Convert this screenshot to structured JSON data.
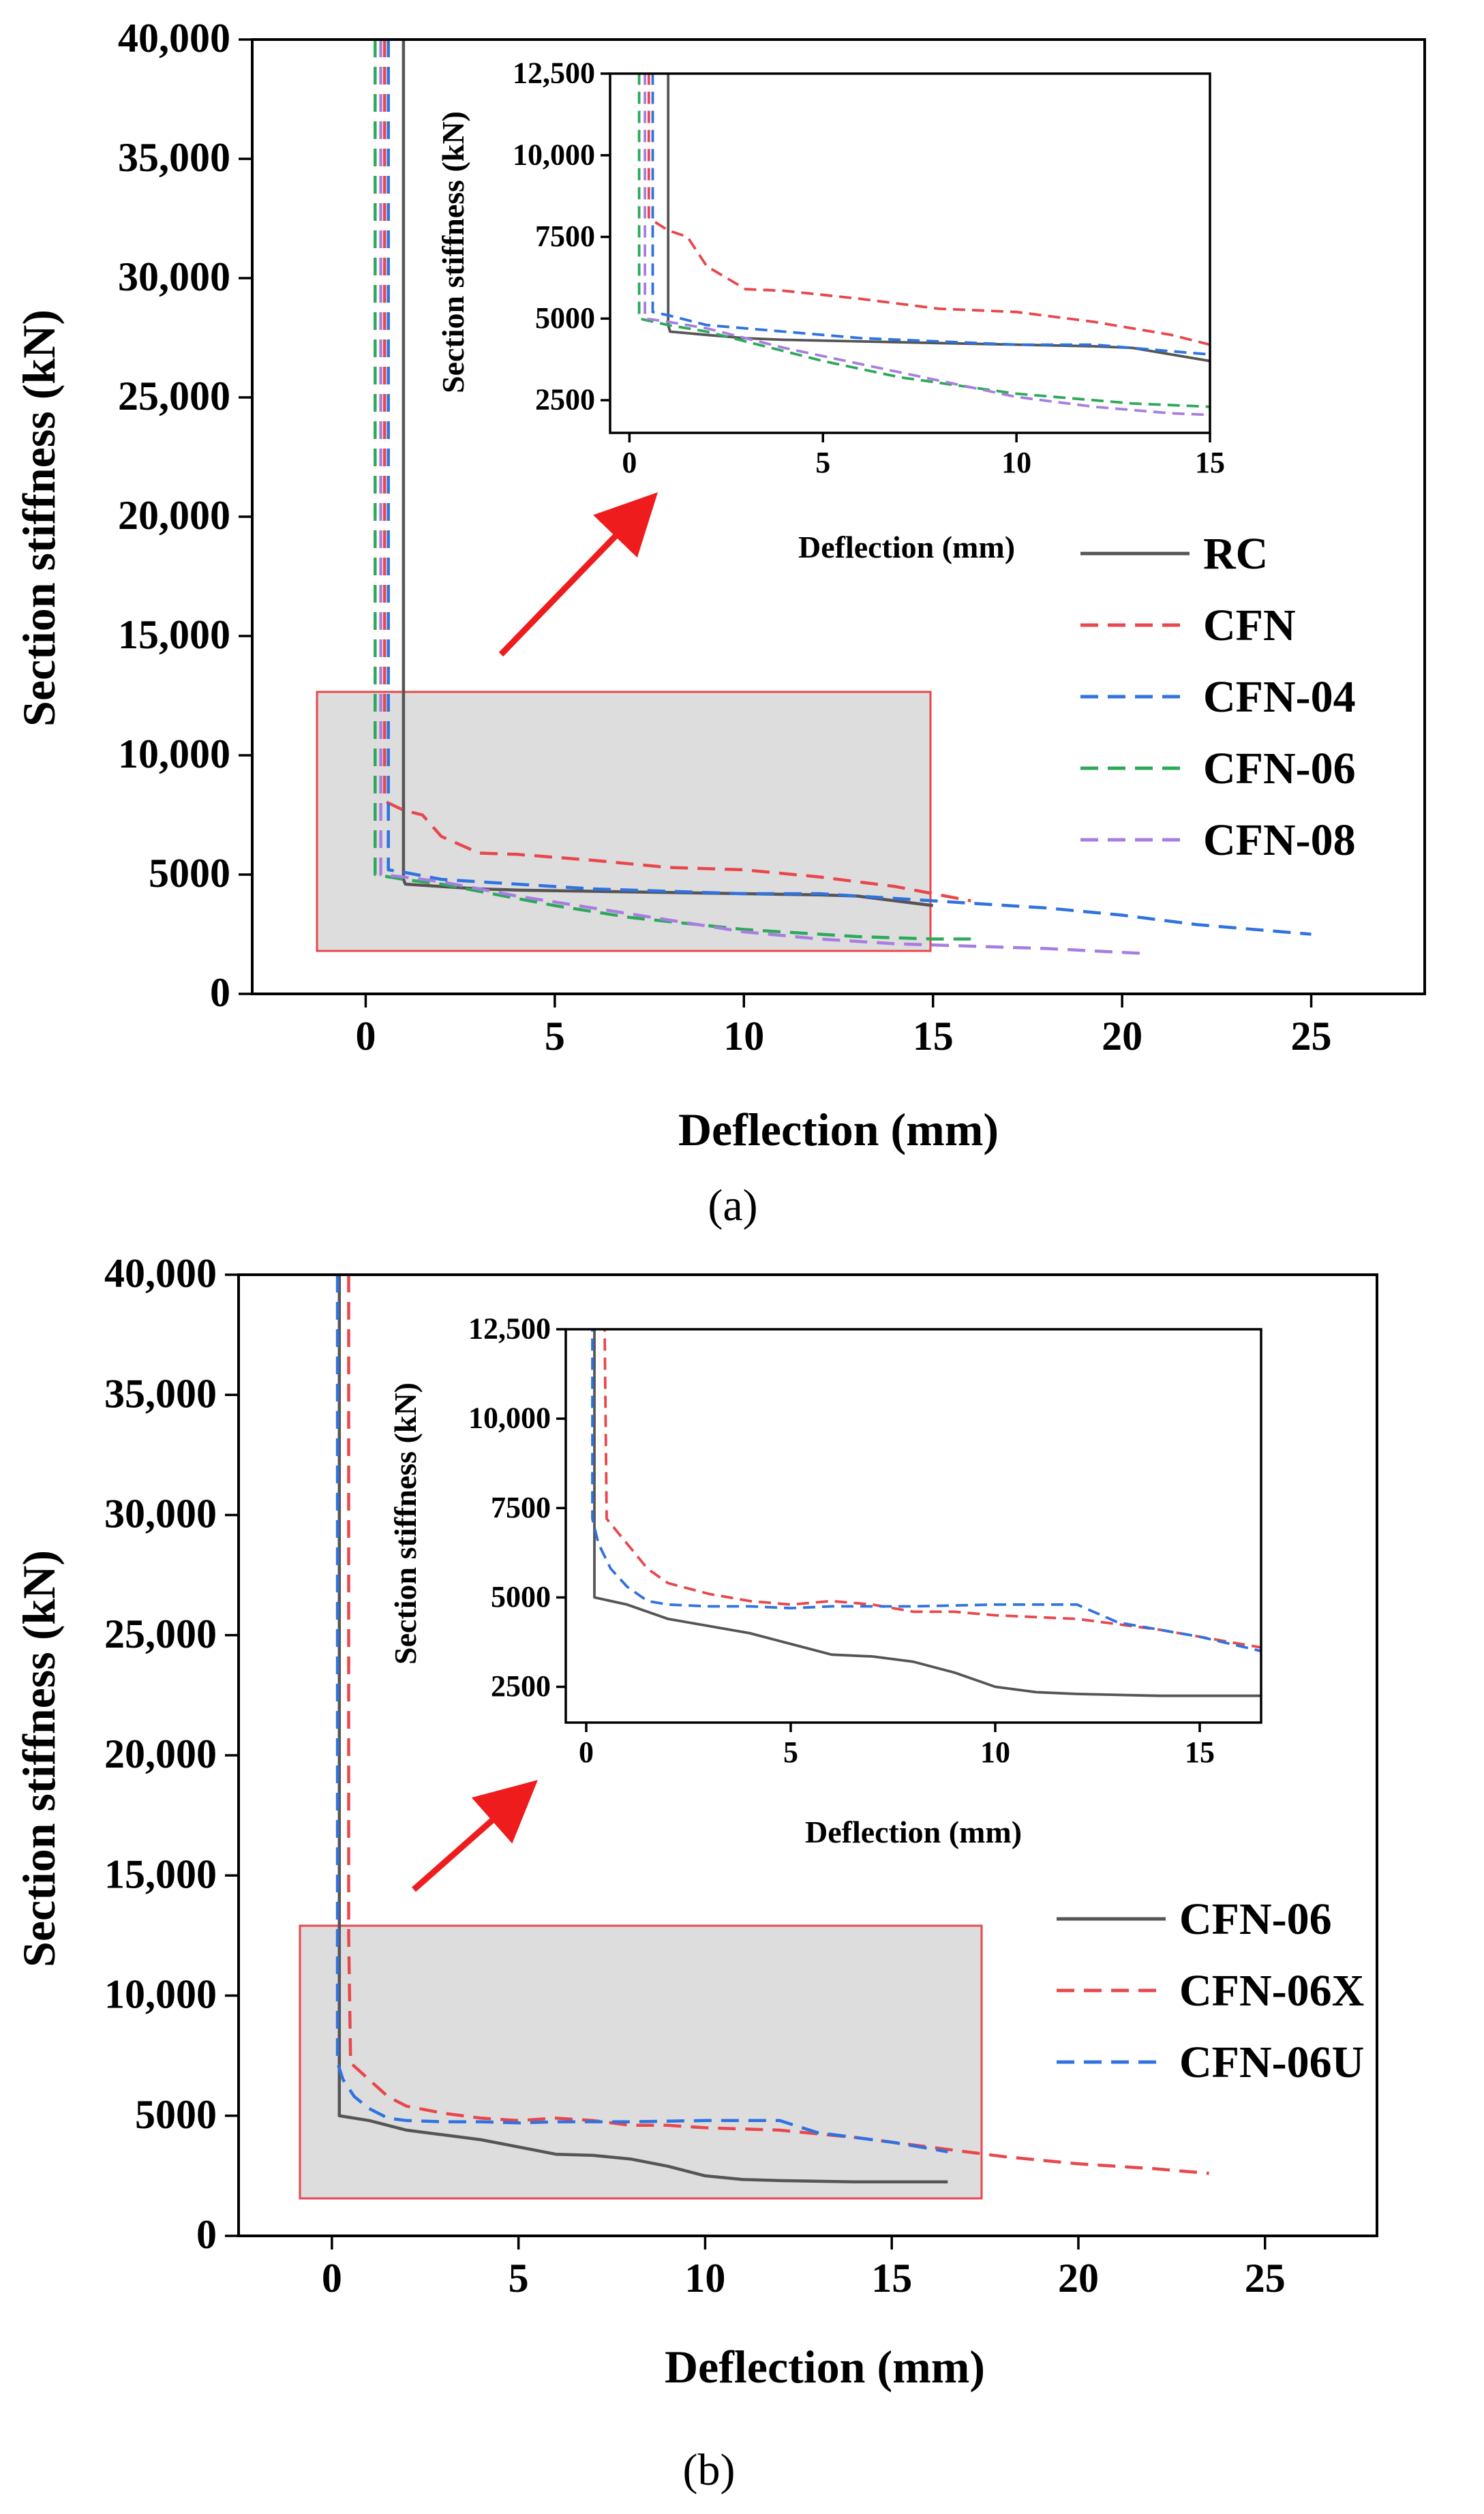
{
  "chart_data": [
    {
      "type": "line",
      "panel_label": "(a)",
      "xlabel": "Deflection (mm)",
      "ylabel": "Section stiffness (kN)",
      "xlim": [
        -3,
        28
      ],
      "ylim": [
        0,
        40000
      ],
      "xticks": [
        0,
        5,
        10,
        15,
        20,
        25
      ],
      "yticks": [
        0,
        5000,
        10000,
        15000,
        20000,
        25000,
        30000,
        35000,
        40000
      ],
      "ytick_labels": [
        "0",
        "5000",
        "10,000",
        "15,000",
        "20,000",
        "25,000",
        "30,000",
        "35,000",
        "40,000"
      ],
      "series": [
        {
          "name": "RC",
          "color": "#555555",
          "dash": "solid",
          "x": [
            1.0,
            1.0,
            1.05,
            2,
            3,
            4,
            6,
            8,
            10,
            12,
            13,
            14,
            15
          ],
          "y": [
            40000,
            4800,
            4600,
            4500,
            4400,
            4350,
            4300,
            4250,
            4200,
            4150,
            4100,
            3900,
            3700
          ]
        },
        {
          "name": "CFN",
          "color": "#e8474c",
          "dash": "dashed",
          "x": [
            0.5,
            0.5,
            0.6,
            1,
            1.5,
            2,
            3,
            4,
            6,
            8,
            10,
            12,
            14,
            16
          ],
          "y": [
            40000,
            8100,
            8000,
            7700,
            7500,
            6600,
            5900,
            5850,
            5600,
            5300,
            5200,
            4900,
            4500,
            3900
          ]
        },
        {
          "name": "CFN-04",
          "color": "#2f72e0",
          "dash": "dashed",
          "x": [
            0.6,
            0.6,
            1,
            2,
            4,
            6,
            8,
            10,
            12,
            14,
            16,
            18,
            20,
            22,
            25
          ],
          "y": [
            40000,
            5200,
            5100,
            4800,
            4600,
            4400,
            4300,
            4200,
            4200,
            4000,
            3800,
            3600,
            3300,
            2900,
            2500
          ]
        },
        {
          "name": "CFN-06",
          "color": "#2ea85a",
          "dash": "dashed",
          "x": [
            0.25,
            0.25,
            1,
            2,
            3,
            4,
            5,
            7,
            10,
            13,
            15,
            16
          ],
          "y": [
            40000,
            5000,
            4800,
            4600,
            4300,
            4000,
            3700,
            3200,
            2700,
            2400,
            2300,
            2300
          ]
        },
        {
          "name": "CFN-08",
          "color": "#a77ee0",
          "dash": "dashed",
          "x": [
            0.4,
            0.4,
            1,
            2,
            3,
            4,
            6,
            8,
            10,
            12,
            14,
            16,
            18,
            20.5
          ],
          "y": [
            40000,
            5000,
            4900,
            4700,
            4400,
            4100,
            3600,
            3100,
            2600,
            2300,
            2100,
            2000,
            1900,
            1700
          ]
        }
      ],
      "inset": {
        "xlim": [
          -0.5,
          15
        ],
        "ylim": [
          1500,
          12500
        ],
        "xticks": [
          0,
          5,
          10,
          15
        ],
        "yticks": [
          2500,
          5000,
          7500,
          10000,
          12500
        ],
        "ytick_labels": [
          "2500",
          "5000",
          "7500",
          "10,000",
          "12,500"
        ],
        "xlabel": "Deflection (mm)",
        "ylabel": "Section stiffness (kN)"
      },
      "highlight_region": {
        "x": [
          -1,
          15
        ],
        "y": [
          1500,
          12500
        ]
      }
    },
    {
      "type": "line",
      "panel_label": "(b)",
      "xlabel": "Deflection (mm)",
      "ylabel": "Section stiffness (kN)",
      "xlim": [
        -2.5,
        28
      ],
      "ylim": [
        0,
        40000
      ],
      "xticks": [
        0,
        5,
        10,
        15,
        20,
        25
      ],
      "yticks": [
        0,
        5000,
        10000,
        15000,
        20000,
        25000,
        30000,
        35000,
        40000
      ],
      "ytick_labels": [
        "0",
        "5000",
        "10,000",
        "15,000",
        "20,000",
        "25,000",
        "30,000",
        "35,000",
        "40,000"
      ],
      "series": [
        {
          "name": "CFN-06",
          "color": "#555555",
          "dash": "solid",
          "x": [
            0.2,
            0.2,
            1,
            2,
            3,
            4,
            5,
            6,
            7,
            8,
            9,
            10,
            11,
            12,
            14,
            16.5
          ],
          "y": [
            40000,
            5000,
            4800,
            4400,
            4200,
            4000,
            3700,
            3400,
            3350,
            3200,
            2900,
            2500,
            2350,
            2300,
            2250,
            2250
          ]
        },
        {
          "name": "CFN-06X",
          "color": "#e8474c",
          "dash": "dashed",
          "x": [
            0.45,
            0.45,
            0.5,
            1,
            1.5,
            2,
            3,
            4,
            5,
            6,
            7,
            8,
            9,
            10,
            12,
            14,
            16,
            18,
            20,
            22,
            23.5
          ],
          "y": [
            40000,
            12500,
            7200,
            6500,
            5800,
            5400,
            5100,
            4900,
            4800,
            4900,
            4800,
            4600,
            4600,
            4500,
            4400,
            4100,
            3700,
            3300,
            3000,
            2800,
            2600
          ]
        },
        {
          "name": "CFN-06U",
          "color": "#2f72e0",
          "dash": "dashed",
          "x": [
            0.15,
            0.15,
            0.3,
            0.6,
            1,
            1.5,
            2,
            3,
            4,
            5,
            6,
            8,
            10,
            12,
            13,
            14,
            15,
            16.5
          ],
          "y": [
            40000,
            7200,
            6500,
            5800,
            5300,
            4900,
            4800,
            4750,
            4750,
            4700,
            4750,
            4750,
            4800,
            4800,
            4300,
            4100,
            3900,
            3500
          ]
        }
      ],
      "inset": {
        "xlim": [
          -0.5,
          16.5
        ],
        "ylim": [
          1500,
          12500
        ],
        "xticks": [
          0,
          5,
          10,
          15
        ],
        "yticks": [
          2500,
          5000,
          7500,
          10000,
          12500
        ],
        "ytick_labels": [
          "2500",
          "5000",
          "7500",
          "10,000",
          "12,500"
        ],
        "xlabel": "Deflection (mm)",
        "ylabel": "Section stiffness (kN)"
      },
      "highlight_region": {
        "x": [
          -1,
          16.5
        ],
        "y": [
          1200,
          12800
        ]
      }
    }
  ]
}
